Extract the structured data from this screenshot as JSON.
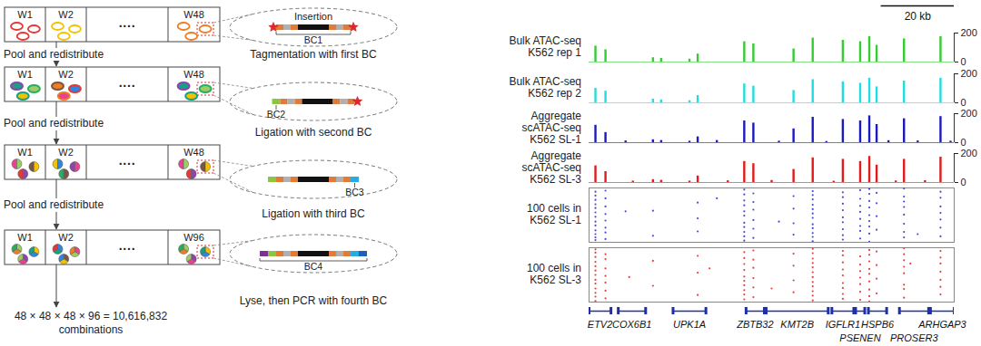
{
  "diagram": {
    "steps": [
      {
        "wells": [
          "W1",
          "W2",
          "W48"
        ],
        "ellipsis": "····",
        "barcode": "BC1",
        "fragment_label": "Insertion",
        "step_label": "Tagmentation with first BC",
        "transition": "Pool and redistribute"
      },
      {
        "wells": [
          "W1",
          "W2",
          "W48"
        ],
        "ellipsis": "····",
        "barcode": "BC2",
        "step_label": "Ligation with second BC",
        "transition": "Pool and redistribute"
      },
      {
        "wells": [
          "W1",
          "W2",
          "W48"
        ],
        "ellipsis": "····",
        "barcode": "BC3",
        "step_label": "Ligation with third BC",
        "transition": "Pool and redistribute"
      },
      {
        "wells": [
          "W1",
          "W2",
          "W96"
        ],
        "ellipsis": "····",
        "barcode": "BC4",
        "step_label": "Lyse, then PCR with fourth BC"
      }
    ],
    "result": [
      "48 × 48 × 48 × 96 = 10,616,832",
      "combinations"
    ]
  },
  "scale_bar": {
    "label": "20 kb",
    "length_kb": 20
  },
  "chart_data": [
    {
      "type": "signal",
      "label": [
        "Bulk ATAC-seq",
        "K562 rep 1"
      ],
      "color": "#33cc33",
      "xlim": [
        0,
        100
      ],
      "ylim": [
        0,
        200
      ],
      "yticks": [
        0,
        200
      ],
      "tick_labels": "y",
      "x": [
        1.75,
        4.5,
        17.5,
        19.75,
        27.5,
        29.75,
        42.5,
        45,
        56,
        61.25,
        69.5,
        74.25,
        76.75,
        78.75,
        86.25,
        96.25
      ],
      "values": [
        110,
        85,
        30,
        25,
        20,
        55,
        140,
        125,
        90,
        165,
        150,
        140,
        175,
        115,
        160,
        175
      ]
    },
    {
      "type": "signal",
      "label": [
        "Bulk ATAC-seq",
        "K562 rep 2"
      ],
      "color": "#22dde0",
      "xlim": [
        0,
        100
      ],
      "ylim": [
        0,
        200
      ],
      "yticks": [
        0,
        200
      ],
      "tick_labels": "y",
      "x": [
        1.75,
        4.5,
        17.5,
        19.75,
        27.5,
        29.75,
        42.5,
        45,
        56,
        61.25,
        69.5,
        74.25,
        76.75,
        78.75,
        86.25,
        96.25
      ],
      "values": [
        100,
        80,
        25,
        20,
        15,
        50,
        130,
        115,
        85,
        160,
        145,
        135,
        170,
        110,
        150,
        170
      ]
    },
    {
      "type": "signal",
      "label": [
        "Aggregate",
        "scATAC-seq",
        "K562 SL-1"
      ],
      "color": "#1a1ac0",
      "xlim": [
        0,
        100
      ],
      "ylim": [
        0,
        200
      ],
      "yticks": [
        0,
        200
      ],
      "tick_labels": "y",
      "x": [
        1.75,
        4.5,
        17.5,
        19.75,
        27.5,
        29.75,
        42.5,
        45,
        56,
        61.25,
        69.5,
        74.25,
        76.75,
        78.75,
        86.25,
        96.25,
        10,
        35,
        52,
        65,
        82,
        90,
        99
      ],
      "values": [
        120,
        70,
        20,
        15,
        10,
        40,
        150,
        135,
        95,
        175,
        160,
        150,
        185,
        125,
        165,
        180,
        12,
        15,
        10,
        8,
        14,
        12,
        10
      ]
    },
    {
      "type": "signal",
      "label": [
        "Aggregate",
        "scATAC-seq",
        "K562 SL-3"
      ],
      "color": "#e31a1c",
      "xlim": [
        0,
        100
      ],
      "ylim": [
        0,
        200
      ],
      "yticks": [
        0,
        200
      ],
      "tick_labels": "y",
      "x": [
        1.75,
        4.5,
        17.5,
        19.75,
        27.5,
        29.75,
        42.5,
        45,
        56,
        61.25,
        69.5,
        74.25,
        76.75,
        78.75,
        86.25,
        96.25,
        12,
        38,
        50,
        67,
        84,
        92
      ],
      "values": [
        115,
        75,
        20,
        15,
        10,
        45,
        145,
        130,
        90,
        170,
        160,
        145,
        180,
        120,
        160,
        175,
        10,
        12,
        14,
        9,
        11,
        13
      ]
    },
    {
      "type": "cells",
      "label": [
        "100 cells in",
        "K562 SL-1"
      ],
      "color": "#4a4ad8",
      "xlim": [
        0,
        100
      ],
      "ylim": [
        0,
        100
      ],
      "tick_labels": false,
      "cells": [
        {
          "kb": 1.75,
          "cells": [
            4,
            9,
            15,
            22,
            31,
            38,
            47,
            55,
            63,
            70,
            78,
            86,
            93
          ]
        },
        {
          "kb": 4.5,
          "cells": [
            6,
            18,
            27,
            40,
            52,
            66,
            81,
            95
          ]
        },
        {
          "kb": 17.5,
          "cells": [
            12,
            58
          ]
        },
        {
          "kb": 29.75,
          "cells": [
            20,
            44,
            73
          ]
        },
        {
          "kb": 42.5,
          "cells": [
            3,
            11,
            19,
            28,
            36,
            49,
            57,
            68,
            77,
            88,
            97
          ]
        },
        {
          "kb": 45,
          "cells": [
            8,
            25,
            41,
            60,
            74,
            90
          ]
        },
        {
          "kb": 56,
          "cells": [
            14,
            35,
            62,
            85
          ]
        },
        {
          "kb": 61.25,
          "cells": [
            2,
            10,
            17,
            26,
            33,
            45,
            53,
            61,
            69,
            79,
            87,
            94
          ]
        },
        {
          "kb": 69.5,
          "cells": [
            5,
            13,
            24,
            37,
            46,
            59,
            71,
            83,
            92
          ]
        },
        {
          "kb": 74.25,
          "cells": [
            7,
            21,
            30,
            43,
            56,
            67,
            80,
            96
          ]
        },
        {
          "kb": 76.75,
          "cells": [
            1,
            16,
            29,
            39,
            50,
            64,
            76,
            89,
            98
          ]
        },
        {
          "kb": 78.75,
          "cells": [
            23,
            48,
            72,
            91
          ]
        },
        {
          "kb": 86.25,
          "cells": [
            9,
            19,
            34,
            51,
            65,
            75,
            84,
            99
          ]
        },
        {
          "kb": 96.25,
          "cells": [
            11,
            27,
            42,
            54,
            66,
            82,
            93
          ]
        },
        {
          "kb": 10,
          "cells": [
            57
          ]
        },
        {
          "kb": 35,
          "cells": [
            81
          ]
        },
        {
          "kb": 52,
          "cells": [
            38
          ]
        },
        {
          "kb": 90,
          "cells": [
            15
          ]
        }
      ]
    },
    {
      "type": "cells",
      "label": [
        "100 cells in",
        "K562 SL-3"
      ],
      "color": "#e84040",
      "xlim": [
        0,
        100
      ],
      "ylim": [
        0,
        100
      ],
      "tick_labels": false,
      "cells": [
        {
          "kb": 1.75,
          "cells": [
            2,
            10,
            17,
            25,
            34,
            41,
            50,
            58,
            66,
            74,
            83,
            91,
            97
          ]
        },
        {
          "kb": 4.5,
          "cells": [
            7,
            21,
            36,
            48,
            62,
            79,
            88
          ]
        },
        {
          "kb": 17.5,
          "cells": [
            30,
            76
          ]
        },
        {
          "kb": 29.75,
          "cells": [
            13,
            54,
            85
          ]
        },
        {
          "kb": 42.5,
          "cells": [
            5,
            14,
            22,
            31,
            39,
            47,
            59,
            70,
            81,
            92
          ]
        },
        {
          "kb": 45,
          "cells": [
            9,
            27,
            44,
            63,
            78,
            95
          ]
        },
        {
          "kb": 56,
          "cells": [
            18,
            40,
            67,
            89
          ]
        },
        {
          "kb": 61.25,
          "cells": [
            3,
            12,
            20,
            29,
            37,
            46,
            55,
            64,
            72,
            80,
            90,
            98
          ]
        },
        {
          "kb": 69.5,
          "cells": [
            6,
            15,
            26,
            35,
            49,
            60,
            73,
            86,
            94
          ]
        },
        {
          "kb": 74.25,
          "cells": [
            4,
            19,
            33,
            45,
            57,
            69,
            84
          ]
        },
        {
          "kb": 76.75,
          "cells": [
            1,
            11,
            23,
            38,
            52,
            61,
            75,
            87,
            96
          ]
        },
        {
          "kb": 78.75,
          "cells": [
            16,
            43,
            68,
            93
          ]
        },
        {
          "kb": 86.25,
          "cells": [
            8,
            24,
            32,
            53,
            65,
            77,
            88,
            99
          ]
        },
        {
          "kb": 96.25,
          "cells": [
            14,
            28,
            41,
            56,
            71,
            82,
            94
          ]
        },
        {
          "kb": 11,
          "cells": [
            46
          ]
        },
        {
          "kb": 33,
          "cells": [
            62
          ]
        },
        {
          "kb": 50,
          "cells": [
            25
          ]
        },
        {
          "kb": 88,
          "cells": [
            71
          ]
        }
      ]
    },
    {
      "type": "genes",
      "color": "#1f2fa8",
      "xlim": [
        0,
        100
      ],
      "tick_labels": false,
      "genes": [
        {
          "name": "ETV2",
          "start": 0,
          "end": 6
        },
        {
          "name": "COX6B1",
          "start": 8,
          "end": 15.5
        },
        {
          "name": "UPK1A",
          "start": 23,
          "end": 32
        },
        {
          "name": "ZBTB32",
          "start": 43,
          "end": 48
        },
        {
          "name": "KMT2B",
          "start": 48.5,
          "end": 65.5
        },
        {
          "name": "IGFLR1",
          "start": 66.5,
          "end": 72.5
        },
        {
          "name": "PSENEN",
          "start": 73,
          "end": 75.5
        },
        {
          "name": "HSPB6",
          "start": 76.5,
          "end": 81.5
        },
        {
          "name": "PROSER3",
          "start": 85,
          "end": 93
        },
        {
          "name": "ARHGAP3",
          "start": 93.5,
          "end": 100
        }
      ]
    }
  ]
}
